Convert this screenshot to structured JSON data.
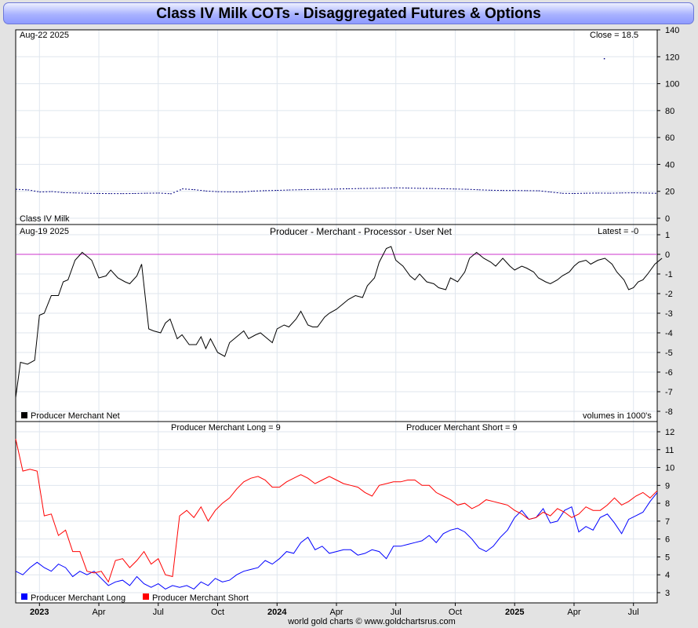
{
  "title": "Class IV Milk COTs - Disaggregated Futures & Options",
  "footer": "world gold charts © www.goldchartsrus.com",
  "colors": {
    "price": "#000080",
    "net": "#000000",
    "zero_line": "#cc33cc",
    "long": "#0000ff",
    "short": "#ff0000"
  },
  "x_axis": {
    "labels": [
      {
        "text": "2023",
        "x": 2023.0,
        "bold": true
      },
      {
        "text": "Apr",
        "x": 2023.25,
        "bold": false
      },
      {
        "text": "Jul",
        "x": 2023.5,
        "bold": false
      },
      {
        "text": "Oct",
        "x": 2023.75,
        "bold": false
      },
      {
        "text": "2024",
        "x": 2024.0,
        "bold": true
      },
      {
        "text": "Apr",
        "x": 2024.25,
        "bold": false
      },
      {
        "text": "Jul",
        "x": 2024.5,
        "bold": false
      },
      {
        "text": "Oct",
        "x": 2024.75,
        "bold": false
      },
      {
        "text": "2025",
        "x": 2025.0,
        "bold": true
      },
      {
        "text": "Apr",
        "x": 2025.25,
        "bold": false
      },
      {
        "text": "Jul",
        "x": 2025.5,
        "bold": false
      }
    ]
  },
  "panels": {
    "price": {
      "date_label": "Aug-22  2025",
      "close_label": "Close = 18.5",
      "series_label": "Class IV Milk"
    },
    "net": {
      "date_label": "Aug-19  2025",
      "title": "Producer - Merchant - Processor - User Net",
      "latest_label": "Latest = -0",
      "legend": "Producer Merchant Net",
      "units": "volumes in 1000's"
    },
    "longshort": {
      "long_label": "Producer Merchant Long = 9",
      "short_label": "Producer Merchant Short = 9",
      "legend_long": "Producer Merchant Long",
      "legend_short": "Producer Merchant Short"
    }
  },
  "chart_data": [
    {
      "type": "line",
      "title": "Class IV Milk",
      "ylim": [
        0,
        140
      ],
      "yticks": [
        0,
        20,
        40,
        60,
        80,
        100,
        120,
        140
      ],
      "x": [
        2022.9,
        2022.95,
        2023.0,
        2023.05,
        2023.1,
        2023.15,
        2023.2,
        2023.25,
        2023.3,
        2023.35,
        2023.4,
        2023.45,
        2023.5,
        2023.55,
        2023.6,
        2023.65,
        2023.7,
        2023.75,
        2023.8,
        2023.85,
        2023.9,
        2023.95,
        2024.0,
        2024.05,
        2024.1,
        2024.15,
        2024.2,
        2024.25,
        2024.3,
        2024.35,
        2024.4,
        2024.45,
        2024.5,
        2024.55,
        2024.6,
        2024.65,
        2024.7,
        2024.75,
        2024.8,
        2024.85,
        2024.9,
        2024.95,
        2025.0,
        2025.05,
        2025.1,
        2025.15,
        2025.2,
        2025.25,
        2025.3,
        2025.35,
        2025.4,
        2025.45,
        2025.5,
        2025.55,
        2025.6
      ],
      "values": [
        21.5,
        21,
        19.5,
        19.8,
        19,
        18.8,
        18.5,
        18.4,
        18.3,
        18.3,
        18.4,
        18.6,
        18.7,
        18.2,
        21.8,
        21.2,
        20.2,
        19.7,
        19.6,
        19.5,
        20.2,
        20.5,
        20.7,
        21,
        21.2,
        21.4,
        21.5,
        21.7,
        21.9,
        22.1,
        22.2,
        22.4,
        22.6,
        22.4,
        22.2,
        22.1,
        21.9,
        21.7,
        21.5,
        21.1,
        20.8,
        20.6,
        20.6,
        20.5,
        20.4,
        19.4,
        18.5,
        18.4,
        18.6,
        18.7,
        18.6,
        18.8,
        18.9,
        18.7,
        18.5
      ],
      "outlier": {
        "x": 2025.375,
        "y": 119
      }
    },
    {
      "type": "line",
      "title": "Producer - Merchant - Processor - User Net",
      "ylim": [
        -8,
        1
      ],
      "yticks": [
        -8,
        -7,
        -6,
        -5,
        -4,
        -3,
        -2,
        -1,
        0,
        1
      ],
      "series": [
        {
          "name": "Producer Merchant Net",
          "x": [
            2022.9,
            2022.92,
            2022.95,
            2022.98,
            2023.0,
            2023.02,
            2023.05,
            2023.08,
            2023.1,
            2023.12,
            2023.15,
            2023.18,
            2023.2,
            2023.22,
            2023.25,
            2023.28,
            2023.3,
            2023.33,
            2023.36,
            2023.38,
            2023.41,
            2023.43,
            2023.46,
            2023.48,
            2023.51,
            2023.53,
            2023.55,
            2023.58,
            2023.6,
            2023.63,
            2023.66,
            2023.68,
            2023.7,
            2023.72,
            2023.75,
            2023.78,
            2023.8,
            2023.83,
            2023.86,
            2023.88,
            2023.91,
            2023.93,
            2023.96,
            2023.98,
            2024.0,
            2024.03,
            2024.05,
            2024.08,
            2024.1,
            2024.13,
            2024.15,
            2024.17,
            2024.2,
            2024.22,
            2024.25,
            2024.28,
            2024.3,
            2024.33,
            2024.36,
            2024.38,
            2024.41,
            2024.43,
            2024.46,
            2024.48,
            2024.5,
            2024.53,
            2024.56,
            2024.58,
            2024.6,
            2024.63,
            2024.66,
            2024.68,
            2024.71,
            2024.73,
            2024.76,
            2024.79,
            2024.81,
            2024.84,
            2024.87,
            2024.9,
            2024.92,
            2024.95,
            2024.98,
            2025.0,
            2025.03,
            2025.05,
            2025.08,
            2025.1,
            2025.13,
            2025.15,
            2025.18,
            2025.2,
            2025.23,
            2025.25,
            2025.27,
            2025.3,
            2025.32,
            2025.35,
            2025.38,
            2025.41,
            2025.43,
            2025.46,
            2025.48,
            2025.5,
            2025.52,
            2025.54,
            2025.56,
            2025.59,
            2025.62
          ],
          "values": [
            -7.3,
            -5.5,
            -5.6,
            -5.4,
            -3.1,
            -3.0,
            -2.1,
            -2.1,
            -1.4,
            -1.3,
            -0.3,
            0.1,
            -0.1,
            -0.3,
            -1.2,
            -1.1,
            -0.8,
            -1.2,
            -1.4,
            -1.5,
            -1.1,
            -0.5,
            -3.8,
            -3.9,
            -4.0,
            -3.5,
            -3.3,
            -4.3,
            -4.1,
            -4.6,
            -4.6,
            -4.2,
            -4.8,
            -4.3,
            -5.0,
            -5.2,
            -4.5,
            -4.2,
            -3.9,
            -4.3,
            -4.1,
            -4.0,
            -4.3,
            -4.5,
            -3.8,
            -3.6,
            -3.7,
            -3.3,
            -2.9,
            -3.6,
            -3.7,
            -3.7,
            -3.2,
            -3.0,
            -2.8,
            -2.5,
            -2.3,
            -2.1,
            -2.2,
            -1.6,
            -1.2,
            -0.4,
            0.3,
            0.4,
            -0.3,
            -0.6,
            -1.1,
            -1.3,
            -1.0,
            -1.4,
            -1.5,
            -1.7,
            -1.8,
            -1.2,
            -1.4,
            -0.9,
            -0.2,
            0.1,
            -0.2,
            -0.4,
            -0.6,
            -0.2,
            -0.6,
            -0.8,
            -0.6,
            -0.7,
            -0.9,
            -1.2,
            -1.4,
            -1.5,
            -1.3,
            -1.1,
            -0.9,
            -0.6,
            -0.4,
            -0.3,
            -0.5,
            -0.3,
            -0.2,
            -0.5,
            -0.9,
            -1.3,
            -1.8,
            -1.7,
            -1.4,
            -1.3,
            -1.0,
            -0.5,
            -0.2
          ]
        }
      ],
      "zero_line": 0
    },
    {
      "type": "line",
      "title": "",
      "ylim": [
        3,
        12
      ],
      "yticks": [
        3,
        4,
        5,
        6,
        7,
        8,
        9,
        10,
        11,
        12
      ],
      "series": [
        {
          "name": "Producer Merchant Long",
          "x": [
            2022.9,
            2022.93,
            2022.96,
            2022.99,
            2023.02,
            2023.05,
            2023.08,
            2023.11,
            2023.14,
            2023.17,
            2023.2,
            2023.23,
            2023.26,
            2023.29,
            2023.32,
            2023.35,
            2023.38,
            2023.41,
            2023.44,
            2023.47,
            2023.5,
            2023.53,
            2023.56,
            2023.59,
            2023.62,
            2023.65,
            2023.68,
            2023.71,
            2023.74,
            2023.77,
            2023.8,
            2023.83,
            2023.86,
            2023.89,
            2023.92,
            2023.95,
            2023.98,
            2024.01,
            2024.04,
            2024.07,
            2024.1,
            2024.13,
            2024.16,
            2024.19,
            2024.22,
            2024.25,
            2024.28,
            2024.31,
            2024.34,
            2024.37,
            2024.4,
            2024.43,
            2024.46,
            2024.49,
            2024.52,
            2024.55,
            2024.58,
            2024.61,
            2024.64,
            2024.67,
            2024.7,
            2024.73,
            2024.76,
            2024.79,
            2024.82,
            2024.85,
            2024.88,
            2024.91,
            2024.94,
            2024.97,
            2025.0,
            2025.03,
            2025.06,
            2025.09,
            2025.12,
            2025.15,
            2025.18,
            2025.21,
            2025.24,
            2025.27,
            2025.3,
            2025.33,
            2025.36,
            2025.39,
            2025.42,
            2025.45,
            2025.48,
            2025.51,
            2025.54,
            2025.57,
            2025.6
          ],
          "values": [
            4.2,
            4.0,
            4.4,
            4.7,
            4.4,
            4.2,
            4.6,
            4.4,
            3.9,
            4.2,
            4.0,
            4.2,
            3.8,
            3.4,
            3.6,
            3.7,
            3.4,
            3.9,
            3.5,
            3.3,
            3.5,
            3.2,
            3.4,
            3.3,
            3.4,
            3.2,
            3.6,
            3.4,
            3.8,
            3.6,
            3.7,
            4.0,
            4.2,
            4.3,
            4.4,
            4.8,
            4.6,
            4.9,
            5.3,
            5.2,
            5.8,
            6.1,
            5.4,
            5.6,
            5.2,
            5.3,
            5.4,
            5.4,
            5.1,
            5.2,
            5.4,
            5.3,
            4.9,
            5.6,
            5.6,
            5.7,
            5.8,
            5.9,
            6.2,
            5.8,
            6.3,
            6.5,
            6.6,
            6.4,
            6.0,
            5.5,
            5.3,
            5.6,
            6.1,
            6.5,
            7.2,
            7.6,
            7.1,
            7.2,
            7.7,
            6.9,
            7.0,
            7.6,
            7.8,
            6.4,
            6.7,
            6.5,
            7.2,
            7.4,
            6.9,
            6.3,
            7.1,
            7.3,
            7.5,
            8.1,
            8.6
          ]
        },
        {
          "name": "Producer Merchant Short",
          "x": [
            2022.9,
            2022.93,
            2022.96,
            2022.99,
            2023.02,
            2023.05,
            2023.08,
            2023.11,
            2023.14,
            2023.17,
            2023.2,
            2023.23,
            2023.26,
            2023.29,
            2023.32,
            2023.35,
            2023.38,
            2023.41,
            2023.44,
            2023.47,
            2023.5,
            2023.53,
            2023.56,
            2023.59,
            2023.62,
            2023.65,
            2023.68,
            2023.71,
            2023.74,
            2023.77,
            2023.8,
            2023.83,
            2023.86,
            2023.89,
            2023.92,
            2023.95,
            2023.98,
            2024.01,
            2024.04,
            2024.07,
            2024.1,
            2024.13,
            2024.16,
            2024.19,
            2024.22,
            2024.25,
            2024.28,
            2024.31,
            2024.34,
            2024.37,
            2024.4,
            2024.43,
            2024.46,
            2024.49,
            2024.52,
            2024.55,
            2024.58,
            2024.61,
            2024.64,
            2024.67,
            2024.7,
            2024.73,
            2024.76,
            2024.79,
            2024.82,
            2024.85,
            2024.88,
            2024.91,
            2024.94,
            2024.97,
            2025.0,
            2025.03,
            2025.06,
            2025.09,
            2025.12,
            2025.15,
            2025.18,
            2025.21,
            2025.24,
            2025.27,
            2025.3,
            2025.33,
            2025.36,
            2025.39,
            2025.42,
            2025.45,
            2025.48,
            2025.51,
            2025.54,
            2025.57,
            2025.6
          ],
          "values": [
            11.6,
            9.8,
            9.9,
            9.8,
            7.3,
            7.4,
            6.2,
            6.5,
            5.3,
            5.3,
            4.2,
            4.1,
            4.2,
            3.6,
            4.8,
            4.9,
            4.4,
            4.8,
            5.3,
            4.6,
            4.9,
            4.0,
            3.9,
            7.3,
            7.6,
            7.2,
            7.8,
            7.0,
            7.6,
            8.0,
            8.3,
            8.8,
            9.2,
            9.4,
            9.5,
            9.3,
            8.9,
            8.9,
            9.2,
            9.4,
            9.6,
            9.4,
            9.1,
            9.3,
            9.5,
            9.3,
            9.1,
            9.0,
            8.9,
            8.6,
            8.4,
            9.0,
            9.1,
            9.2,
            9.2,
            9.3,
            9.3,
            9.0,
            9.0,
            8.6,
            8.4,
            8.2,
            7.9,
            8.0,
            7.7,
            7.9,
            8.2,
            8.1,
            8.0,
            7.9,
            7.6,
            7.4,
            7.1,
            7.2,
            7.5,
            7.3,
            7.7,
            7.5,
            7.2,
            7.4,
            7.8,
            7.6,
            7.6,
            7.9,
            8.3,
            7.9,
            8.1,
            8.4,
            8.6,
            8.3,
            8.7
          ]
        }
      ]
    }
  ]
}
